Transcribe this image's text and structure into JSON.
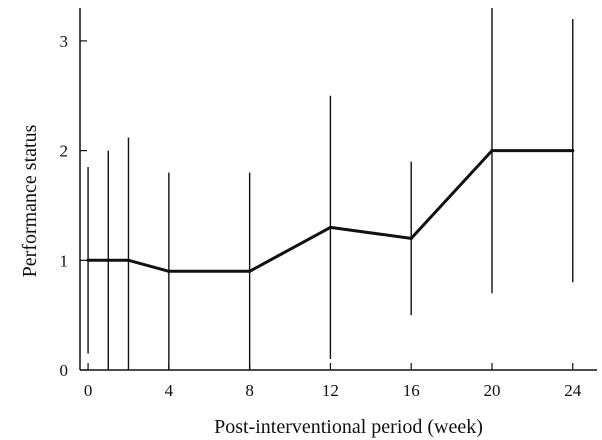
{
  "chart_data": {
    "type": "line",
    "title": "",
    "xlabel": "Post-interventional period (week)",
    "ylabel": "Performance status",
    "x_ticks": [
      0,
      4,
      8,
      12,
      16,
      20,
      24
    ],
    "y_ticks": [
      0,
      1,
      2,
      3
    ],
    "xlim": [
      -0.4,
      25.2
    ],
    "ylim": [
      0,
      3.3
    ],
    "grid": false,
    "series": [
      {
        "points": [
          {
            "x": 0,
            "y": 1.0,
            "err_low": 0.15,
            "err_high": 1.85
          },
          {
            "x": 1,
            "y": 1.0,
            "err_low": 0.0,
            "err_high": 2.0
          },
          {
            "x": 2,
            "y": 1.0,
            "err_low": 0.0,
            "err_high": 2.12
          },
          {
            "x": 4,
            "y": 0.9,
            "err_low": 0.0,
            "err_high": 1.8
          },
          {
            "x": 8,
            "y": 0.9,
            "err_low": 0.0,
            "err_high": 1.8
          },
          {
            "x": 12,
            "y": 1.3,
            "err_low": 0.1,
            "err_high": 2.5
          },
          {
            "x": 16,
            "y": 1.2,
            "err_low": 0.5,
            "err_high": 1.9
          },
          {
            "x": 20,
            "y": 2.0,
            "err_low": 0.7,
            "err_high": 3.3
          },
          {
            "x": 24,
            "y": 2.0,
            "err_low": 0.8,
            "err_high": 3.2
          }
        ]
      }
    ]
  }
}
